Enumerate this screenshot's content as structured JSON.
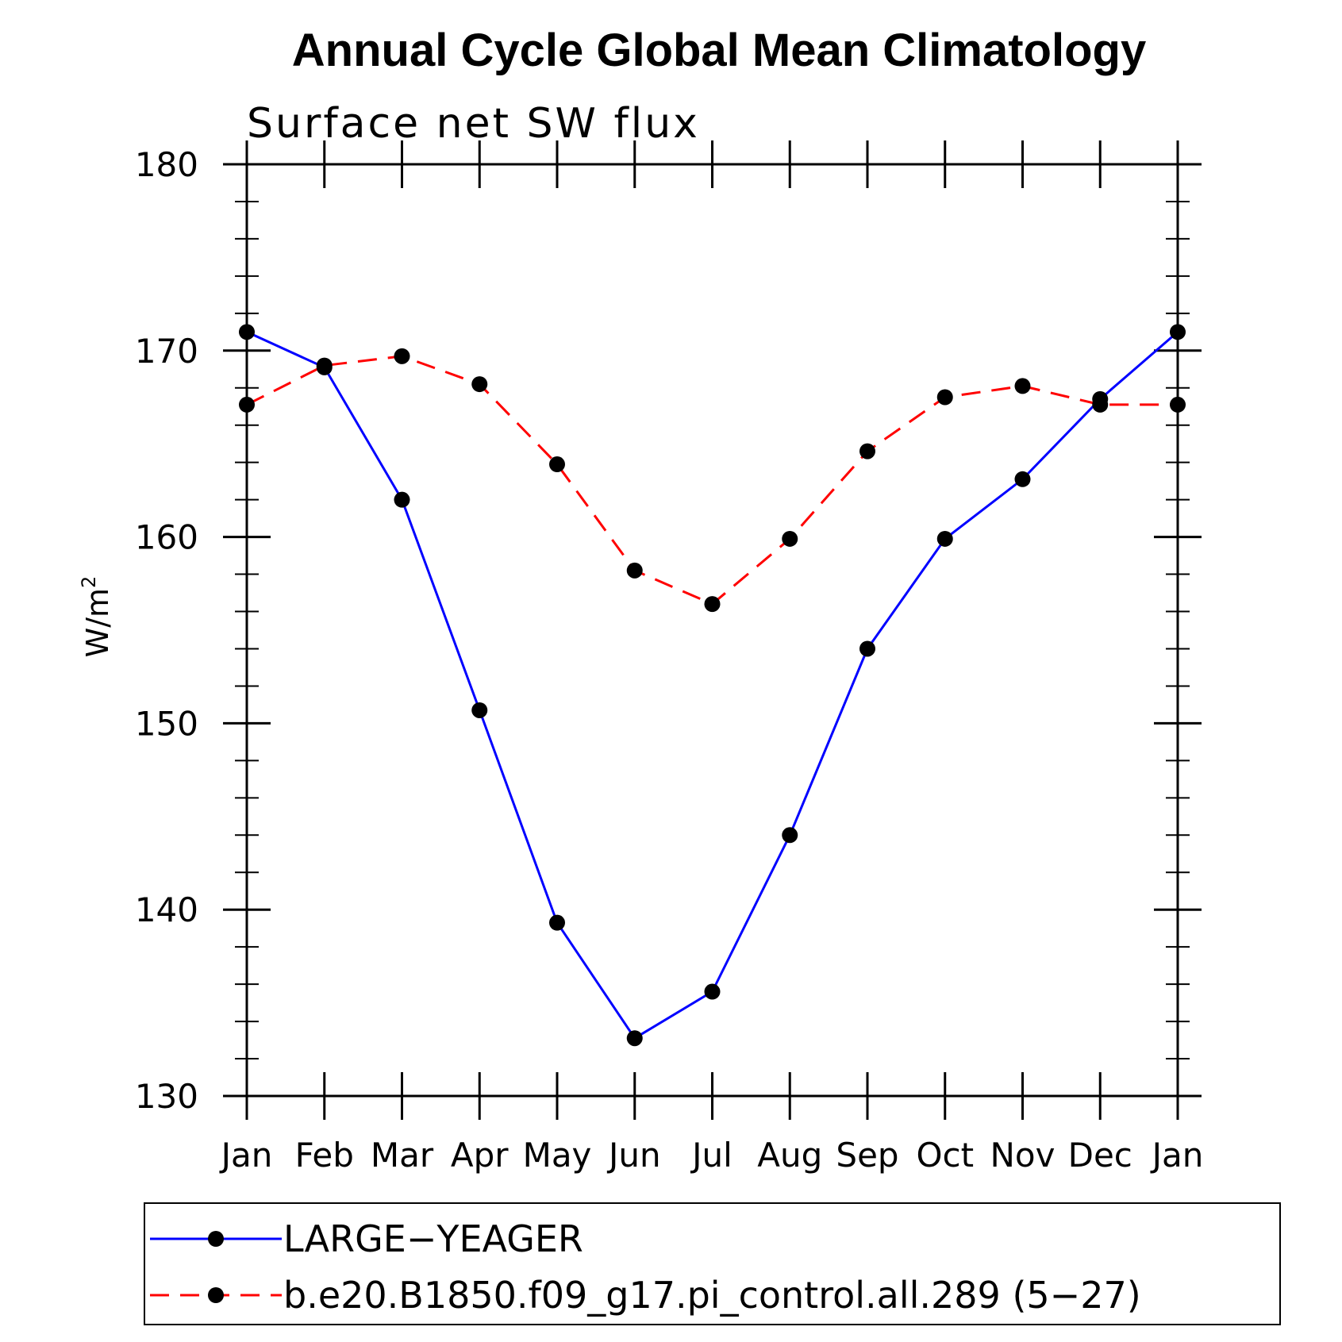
{
  "chart_data": {
    "type": "line",
    "title": "Annual Cycle Global Mean Climatology",
    "subtitle": "Surface net SW flux",
    "ylabel": "W/m",
    "ylabel_sup": "2",
    "xlabel": "",
    "categories": [
      "Jan",
      "Feb",
      "Mar",
      "Apr",
      "May",
      "Jun",
      "Jul",
      "Aug",
      "Sep",
      "Oct",
      "Nov",
      "Dec",
      "Jan"
    ],
    "ylim": [
      130,
      180
    ],
    "yticks": [
      130,
      140,
      150,
      160,
      170,
      180
    ],
    "grid": false,
    "legend_position": "bottom",
    "series": [
      {
        "name": "LARGE−YEAGER",
        "color": "#0000ff",
        "dash": "solid",
        "marker": "filled-circle",
        "values": [
          171.0,
          169.1,
          162.0,
          150.7,
          139.3,
          133.1,
          135.6,
          144.0,
          154.0,
          159.9,
          163.1,
          167.4,
          171.0
        ]
      },
      {
        "name": "b.e20.B1850.f09_g17.pi_control.all.289 (5−27)",
        "color": "#ff0000",
        "dash": "dashed",
        "marker": "filled-circle",
        "values": [
          167.1,
          169.2,
          169.7,
          168.2,
          163.9,
          158.2,
          156.4,
          159.9,
          164.6,
          167.5,
          168.1,
          167.1,
          167.1
        ]
      }
    ]
  }
}
